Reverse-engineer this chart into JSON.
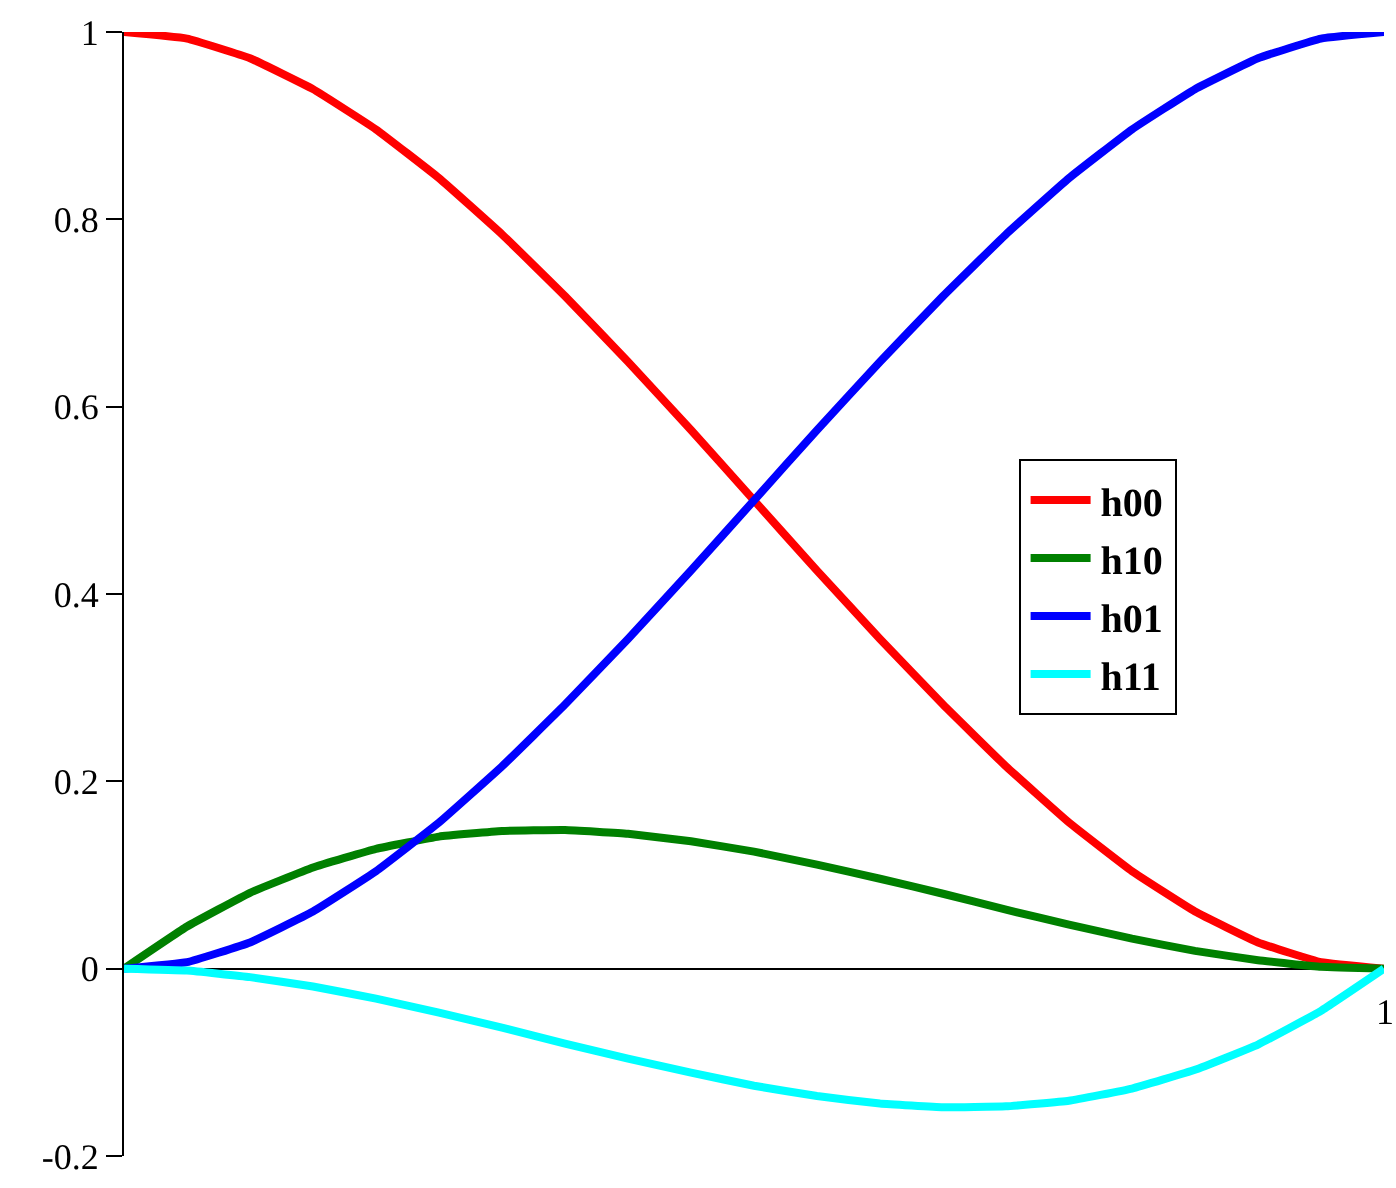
{
  "chart_data": {
    "type": "line",
    "categories": [
      null,
      null,
      null,
      null,
      null,
      null,
      null,
      null,
      null,
      null,
      null,
      null,
      null,
      null,
      null,
      null,
      null,
      null,
      null,
      null,
      null
    ],
    "series": [
      {
        "name": "h00",
        "color": "#ff0000",
        "values": [
          1,
          0.993,
          0.972,
          0.939,
          0.896,
          0.844,
          0.784,
          0.718,
          0.648,
          0.575,
          0.5,
          0.425,
          0.352,
          0.282,
          0.216,
          0.156,
          0.104,
          0.061,
          0.028,
          0.007,
          0
        ]
      },
      {
        "name": "h10",
        "color": "#008000",
        "values": [
          0,
          0.045,
          0.081,
          0.108,
          0.128,
          0.141,
          0.147,
          0.148,
          0.144,
          0.136,
          0.125,
          0.111,
          0.096,
          0.08,
          0.063,
          0.047,
          0.032,
          0.019,
          0.009,
          0.002,
          0
        ]
      },
      {
        "name": "h01",
        "color": "#0000ff",
        "values": [
          0,
          0.007,
          0.028,
          0.061,
          0.104,
          0.156,
          0.216,
          0.282,
          0.352,
          0.425,
          0.5,
          0.575,
          0.648,
          0.718,
          0.784,
          0.844,
          0.896,
          0.939,
          0.972,
          0.993,
          1
        ]
      },
      {
        "name": "h11",
        "color": "#00ffff",
        "values": [
          0,
          -0.002,
          -0.009,
          -0.019,
          -0.032,
          -0.047,
          -0.063,
          -0.08,
          -0.096,
          -0.111,
          -0.125,
          -0.136,
          -0.144,
          -0.148,
          -0.147,
          -0.141,
          -0.128,
          -0.108,
          -0.081,
          -0.045,
          0
        ]
      }
    ],
    "annotations": [
      "1"
    ],
    "ylim": [
      -0.2,
      1
    ],
    "yticks": [
      -0.2,
      0,
      0.2,
      0.4,
      0.6,
      0.8,
      1
    ],
    "tick_labels": "y",
    "legend": "right",
    "marker": "none",
    "line_style": "solid"
  }
}
